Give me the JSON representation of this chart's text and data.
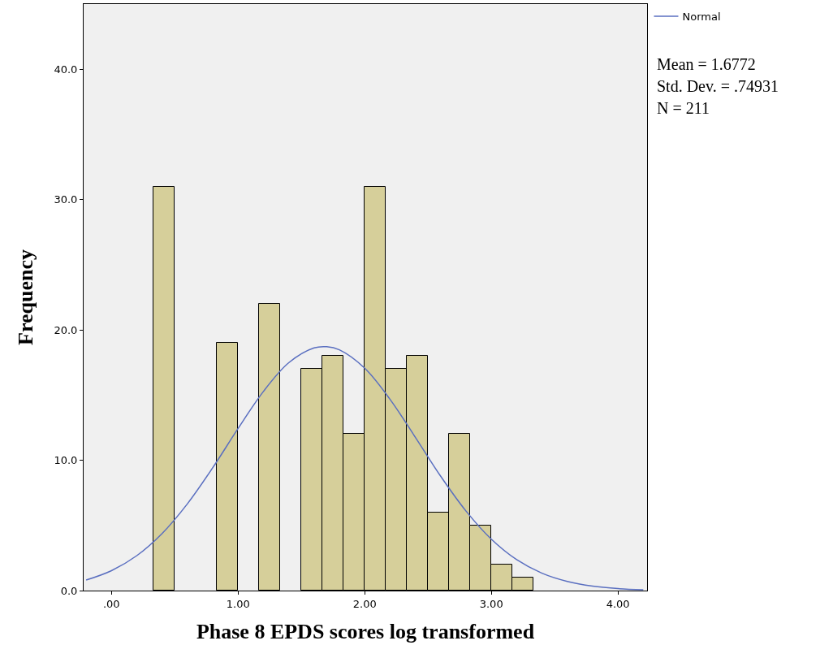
{
  "chart_data": {
    "type": "histogram",
    "xlabel": "Phase 8 EPDS scores log transformed",
    "ylabel": "Frequency",
    "bins": [
      0.333,
      0.5,
      0.667,
      0.833,
      1.0,
      1.167,
      1.333,
      1.5,
      1.667,
      1.833,
      2.0,
      2.167,
      2.333,
      2.5,
      2.667,
      2.833,
      3.0,
      3.167,
      3.333
    ],
    "values": [
      31,
      0,
      0,
      19,
      0,
      22,
      0,
      17,
      18,
      12,
      31,
      17,
      18,
      6,
      12,
      5,
      2,
      1
    ],
    "color": "#d6cf9a",
    "series": [
      {
        "type": "line",
        "name": "Normal",
        "color": "#5a6fc0",
        "x": [
          -0.2,
          0.0,
          0.2,
          0.4,
          0.6,
          0.8,
          1.0,
          1.2,
          1.4,
          1.6,
          1.7,
          1.8,
          2.0,
          2.2,
          2.4,
          2.6,
          2.8,
          3.0,
          3.2,
          3.4,
          3.6,
          3.8,
          4.0,
          4.2
        ],
        "values": [
          0.81,
          1.53,
          2.68,
          4.38,
          6.66,
          9.43,
          12.44,
          15.28,
          17.48,
          18.62,
          18.71,
          18.47,
          17.06,
          14.67,
          11.76,
          8.77,
          6.1,
          3.94,
          2.37,
          1.33,
          0.7,
          0.34,
          0.15,
          0.06
        ]
      }
    ],
    "xlim": [
      -0.22,
      4.23
    ],
    "xticks": [
      {
        "value": 0,
        "label": ".00"
      },
      {
        "value": 1,
        "label": "1.00"
      },
      {
        "value": 2,
        "label": "2.00"
      },
      {
        "value": 3,
        "label": "3.00"
      },
      {
        "value": 4,
        "label": "4.00"
      }
    ],
    "ylim": [
      0,
      45
    ],
    "yticks": [
      {
        "value": 0,
        "label": "0.0"
      },
      {
        "value": 10,
        "label": "10.0"
      },
      {
        "value": 20,
        "label": "20.0"
      },
      {
        "value": 30,
        "label": "30.0"
      },
      {
        "value": 40,
        "label": "40.0"
      }
    ],
    "annotations": [
      "Mean = 1.6772",
      "Std. Dev. = .74931",
      "N = 211"
    ],
    "legend": "top right",
    "grid": false,
    "marker": "none",
    "line_style": "solid"
  }
}
